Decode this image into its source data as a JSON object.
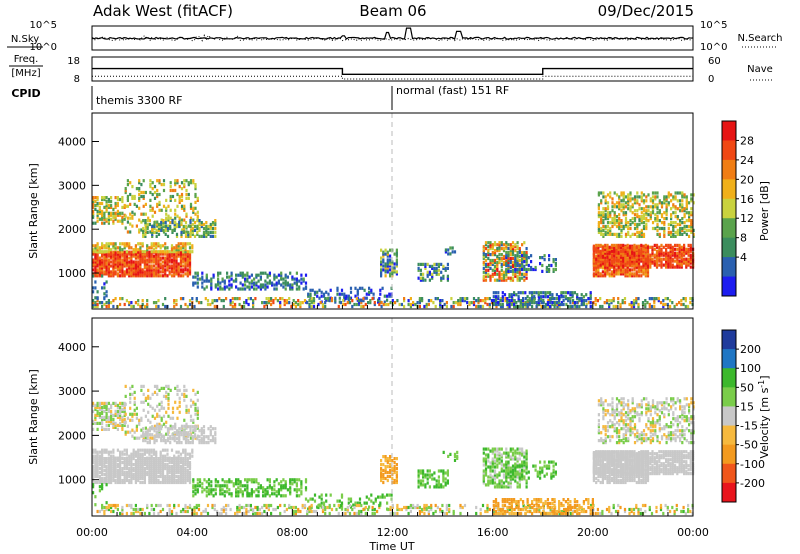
{
  "header": {
    "station": "Adak West (fitACF)",
    "beam": "Beam 06",
    "date": "09/Dec/2015"
  },
  "side_labels": {
    "nsky": "N.Sky",
    "nsearch": "N.Search",
    "freq_line1": "Freq.",
    "freq_line2": "[MHz]",
    "nave": "Nave",
    "cpid": "CPID"
  },
  "colors": {
    "velocity_scale": [
      "#e8141c",
      "#f0561b",
      "#f39a1f",
      "#f6b93e",
      "#c8c8c8",
      "#7acd4a",
      "#3cb82c",
      "#1f76c4",
      "#1f3b9c"
    ],
    "power_scale": [
      "#1d1df0",
      "#2a60b0",
      "#3b8d5e",
      "#5aa34c",
      "#c9d23e",
      "#f0b01a",
      "#f07d14",
      "#f04814",
      "#e61414"
    ]
  },
  "chart_data": [
    {
      "type": "line",
      "name": "noise-panel",
      "series": [
        {
          "name": "N.Sky",
          "style": "solid"
        },
        {
          "name": "N.Search",
          "style": "dotted"
        }
      ],
      "yticks_left": [
        "10^5",
        "10^0"
      ],
      "yticks_right": [
        "10^5",
        "10^0"
      ]
    },
    {
      "type": "line",
      "name": "frequency-nave-panel",
      "yticks_left": [
        "18",
        "8"
      ],
      "yticks_right": [
        "60",
        "0"
      ],
      "freq_steps": [
        {
          "start_hr": 0,
          "end_hr": 10,
          "value": 13.2
        },
        {
          "start_hr": 10,
          "end_hr": 18,
          "value": 10.8
        },
        {
          "start_hr": 18,
          "end_hr": 24,
          "value": 13.2
        }
      ],
      "nave_steps": [
        {
          "start_hr": 0,
          "end_hr": 10,
          "value": 12
        },
        {
          "start_hr": 10,
          "end_hr": 18,
          "value": 5
        },
        {
          "start_hr": 18,
          "end_hr": 24,
          "value": 12
        }
      ]
    },
    {
      "type": "table",
      "name": "cpid-strip",
      "segments": [
        {
          "start_hr": 0,
          "label": "themis 3300 RF"
        },
        {
          "start_hr": 12,
          "label": "normal (fast) 151 RF"
        }
      ]
    },
    {
      "type": "heatmap",
      "name": "power-panel",
      "ylabel": "Slant Range [km]",
      "yticks": [
        1000,
        2000,
        3000,
        4000
      ],
      "ylim": [
        180,
        4650
      ],
      "colorbar_label": "Power [dB]",
      "colorbar_ticks": [
        "28",
        "24",
        "20",
        "16",
        "12",
        "8",
        "4"
      ]
    },
    {
      "type": "heatmap",
      "name": "velocity-panel",
      "ylabel": "Slant Range [km]",
      "yticks": [
        1000,
        2000,
        3000,
        4000
      ],
      "ylim": [
        180,
        4650
      ],
      "colorbar_label": "Velocity [m s^-1]",
      "colorbar_ticks": [
        "200",
        "100",
        "50",
        "15",
        "-15",
        "-50",
        "-100",
        "-200"
      ]
    }
  ],
  "time_axis": {
    "xlabel": "Time UT",
    "ticks": [
      "00:00",
      "04:00",
      "08:00",
      "12:00",
      "16:00",
      "20:00",
      "00:00"
    ],
    "xlim_hr": [
      0,
      24
    ]
  }
}
